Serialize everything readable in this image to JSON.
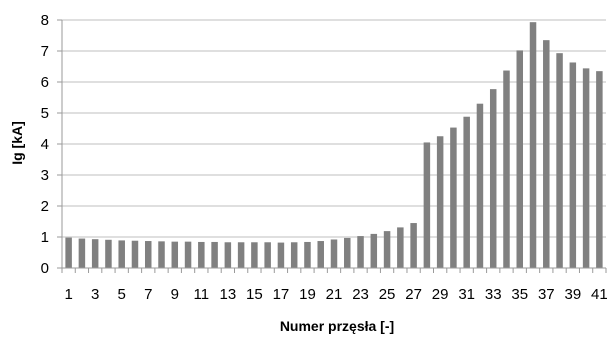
{
  "chart_data": {
    "type": "bar",
    "title": "",
    "xlabel": "Numer przęsła [-]",
    "ylabel": "Ig [kA]",
    "ylim": [
      0,
      8
    ],
    "yticks": [
      0,
      1,
      2,
      3,
      4,
      5,
      6,
      7,
      8
    ],
    "grid": true,
    "legend": "none",
    "bar_color": "#808080",
    "grid_color": "#bfbfbf",
    "categories": [
      "1",
      "2",
      "3",
      "4",
      "5",
      "6",
      "7",
      "8",
      "9",
      "10",
      "11",
      "12",
      "13",
      "14",
      "15",
      "16",
      "17",
      "18",
      "19",
      "20",
      "21",
      "22",
      "23",
      "24",
      "25",
      "26",
      "27",
      "28",
      "29",
      "30",
      "31",
      "32",
      "33",
      "34",
      "35",
      "36",
      "37",
      "38",
      "39",
      "40",
      "41"
    ],
    "x_tick_labels": [
      "1",
      "3",
      "5",
      "7",
      "9",
      "11",
      "13",
      "15",
      "17",
      "19",
      "21",
      "23",
      "25",
      "27",
      "29",
      "31",
      "33",
      "35",
      "37",
      "39",
      "41"
    ],
    "values": [
      0.98,
      0.95,
      0.93,
      0.91,
      0.89,
      0.88,
      0.87,
      0.86,
      0.85,
      0.85,
      0.84,
      0.84,
      0.83,
      0.83,
      0.83,
      0.83,
      0.82,
      0.83,
      0.84,
      0.87,
      0.92,
      0.97,
      1.03,
      1.1,
      1.19,
      1.31,
      1.45,
      4.05,
      4.25,
      4.53,
      4.88,
      5.3,
      5.77,
      6.37,
      7.02,
      7.93,
      7.35,
      6.93,
      6.63,
      6.44,
      6.35
    ]
  }
}
